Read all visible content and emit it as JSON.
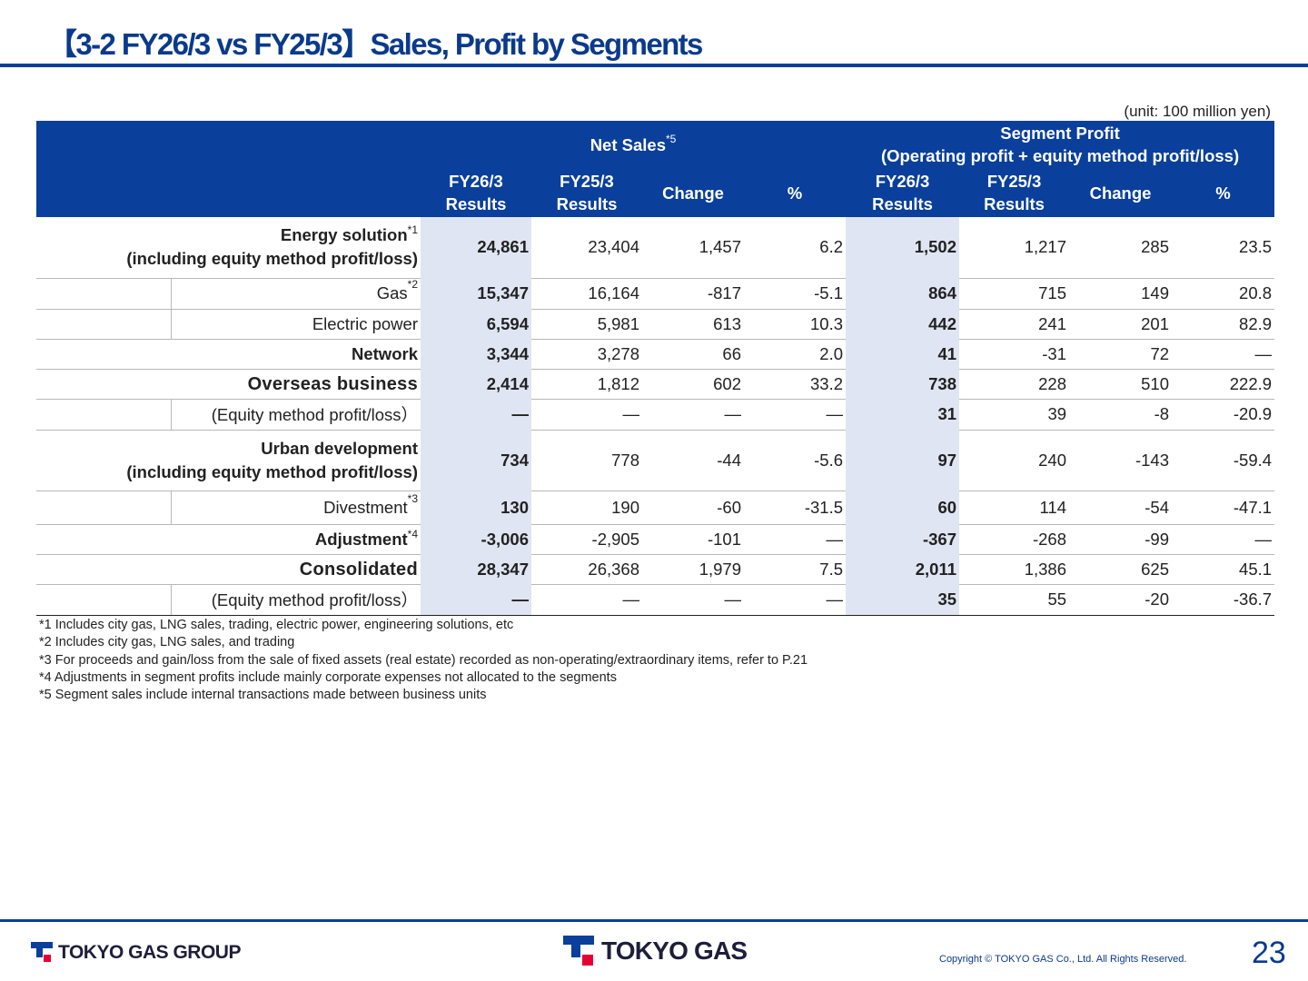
{
  "title": "【3-2 FY26/3 vs FY25/3】Sales, Profit by Segments",
  "unit": "(unit: 100 million yen)",
  "header": {
    "net_sales": "Net Sales",
    "net_sales_note": "*5",
    "segment_profit_line1": "Segment Profit",
    "segment_profit_line2": "(Operating profit + equity method profit/loss)",
    "fy26_line1": "FY26/3",
    "fy25_line1": "FY25/3",
    "results": "Results",
    "change": "Change",
    "pct": "%"
  },
  "rows": [
    {
      "label1": "Energy solution",
      "note": "*1",
      "label2": " (including equity method profit/loss)",
      "values": [
        "24,861",
        "23,404",
        "1,457",
        "6.2",
        "1,502",
        "1,217",
        "285",
        "23.5"
      ]
    },
    {
      "label1": "Gas",
      "note": "*2",
      "values": [
        "15,347",
        "16,164",
        "-817",
        "-5.1",
        "864",
        "715",
        "149",
        "20.8"
      ]
    },
    {
      "label1": "Electric power",
      "values": [
        "6,594",
        "5,981",
        "613",
        "10.3",
        "442",
        "241",
        "201",
        "82.9"
      ]
    },
    {
      "label1": "Network",
      "values": [
        "3,344",
        "3,278",
        "66",
        "2.0",
        "41",
        "-31",
        "72",
        "―"
      ]
    },
    {
      "label1": "Overseas business",
      "values": [
        "2,414",
        "1,812",
        "602",
        "33.2",
        "738",
        "228",
        "510",
        "222.9"
      ]
    },
    {
      "label1": "(Equity method profit/loss）",
      "values": [
        "―",
        "―",
        "―",
        "―",
        "31",
        "39",
        "-8",
        "-20.9"
      ]
    },
    {
      "label1": "Urban development",
      "label2": " (including equity method profit/loss)",
      "values": [
        "734",
        "778",
        "-44",
        "-5.6",
        "97",
        "240",
        "-143",
        "-59.4"
      ]
    },
    {
      "label1": "Divestment",
      "note": "*3",
      "values": [
        "130",
        "190",
        "-60",
        "-31.5",
        "60",
        "114",
        "-54",
        "-47.1"
      ]
    },
    {
      "label1": "Adjustment",
      "note": "*4",
      "values": [
        "-3,006",
        "-2,905",
        "-101",
        "―",
        "-367",
        "-268",
        "-99",
        "―"
      ]
    },
    {
      "label1": "Consolidated",
      "values": [
        "28,347",
        "26,368",
        "1,979",
        "7.5",
        "2,011",
        "1,386",
        "625",
        "45.1"
      ]
    },
    {
      "label1": "(Equity method profit/loss）",
      "values": [
        "―",
        "―",
        "―",
        "―",
        "35",
        "55",
        "-20",
        "-36.7"
      ]
    }
  ],
  "notes": [
    "*1 Includes city gas, LNG sales, trading, electric power, engineering solutions, etc",
    "*2 Includes city gas, LNG sales, and trading",
    "*3 For proceeds and gain/loss from the sale of fixed assets (real estate) recorded as non-operating/extraordinary items, refer to P.21",
    "*4 Adjustments in segment profits include mainly corporate expenses not allocated to the segments",
    "*5 Segment sales include internal transactions made between business units"
  ],
  "footer": {
    "logo_group": "TOKYO GAS GROUP",
    "logo_main": "TOKYO GAS",
    "copyright": "Copyright © TOKYO GAS Co., Ltd. All Rights Reserved.",
    "page": "23"
  },
  "colors": {
    "brand_blue": "#0a3f9b",
    "highlight": "#e0e5f3",
    "logo_red": "#e60033"
  },
  "icons": [
    "tokyo-gas-logo-icon"
  ]
}
